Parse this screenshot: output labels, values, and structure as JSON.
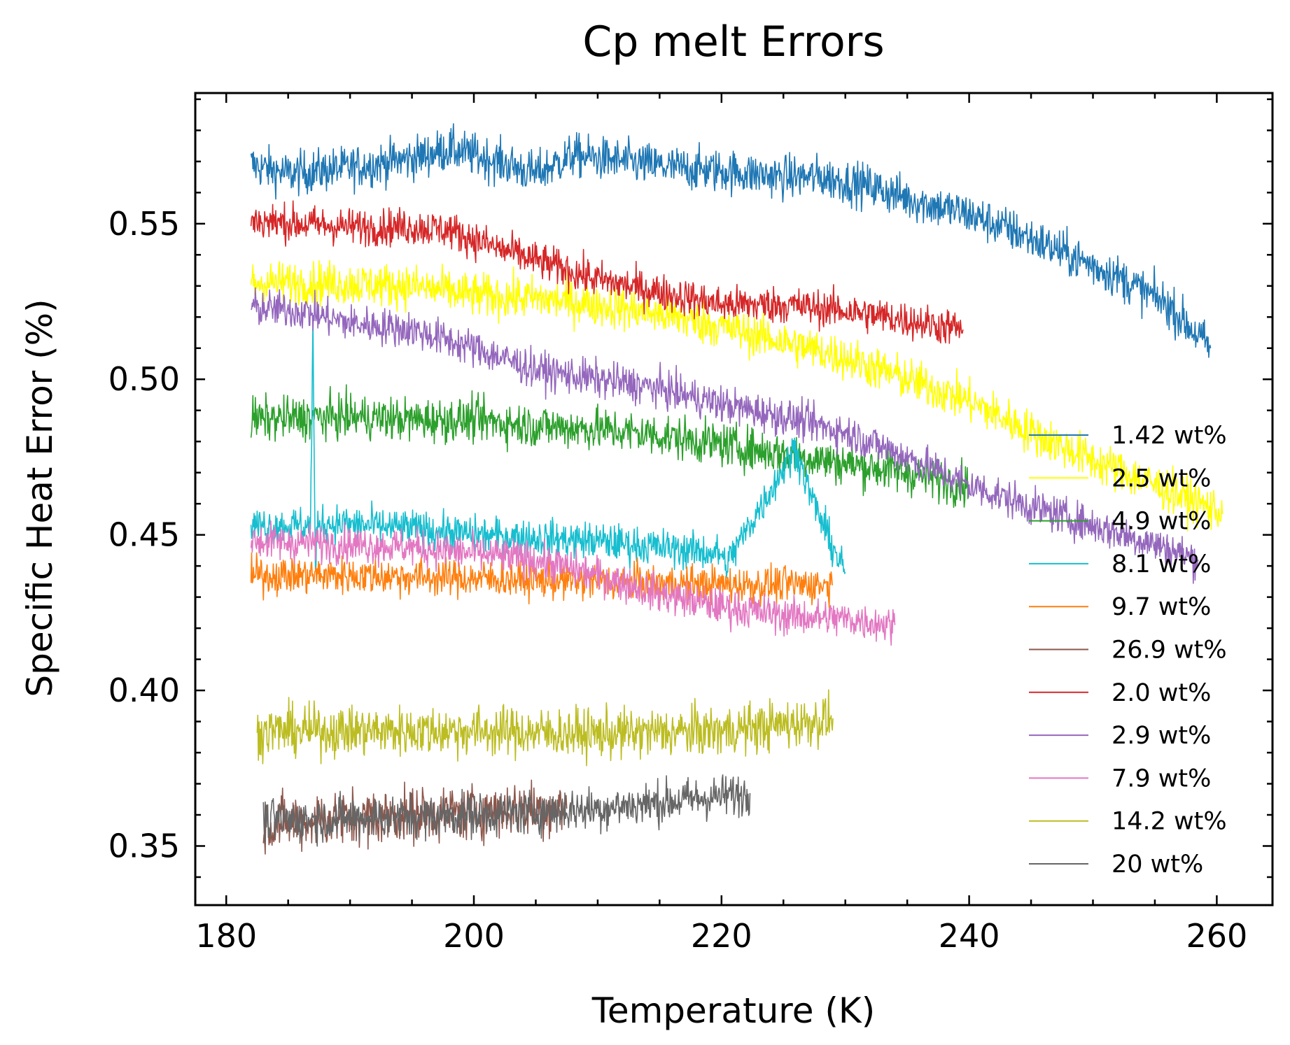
{
  "chart_data": {
    "type": "line",
    "title": "Cp melt Errors",
    "xlabel": "Temperature (K)",
    "ylabel": "Specific Heat Error (%)",
    "xlim": [
      177.5,
      264.5
    ],
    "ylim": [
      0.331,
      0.592
    ],
    "x_ticks": [
      180,
      200,
      220,
      240,
      260
    ],
    "x_tick_labels": [
      "180",
      "200",
      "220",
      "240",
      "260"
    ],
    "y_ticks": [
      0.35,
      0.4,
      0.45,
      0.5,
      0.55
    ],
    "y_tick_labels": [
      "0.35",
      "0.40",
      "0.45",
      "0.50",
      "0.55"
    ],
    "x_minor_step": 5,
    "y_minor_step": 0.01,
    "grid": false,
    "legend_position": "right",
    "series": [
      {
        "name": "1.42 wt%",
        "color": "#1f77b4",
        "noise": 0.0035,
        "points": [
          [
            182,
            0.569
          ],
          [
            185,
            0.566
          ],
          [
            190,
            0.568
          ],
          [
            195,
            0.571
          ],
          [
            198,
            0.574
          ],
          [
            202,
            0.57
          ],
          [
            205,
            0.566
          ],
          [
            208,
            0.572
          ],
          [
            212,
            0.57
          ],
          [
            216,
            0.568
          ],
          [
            220,
            0.567
          ],
          [
            225,
            0.565
          ],
          [
            228,
            0.565
          ],
          [
            232,
            0.562
          ],
          [
            236,
            0.557
          ],
          [
            240,
            0.553
          ],
          [
            244,
            0.547
          ],
          [
            248,
            0.54
          ],
          [
            252,
            0.533
          ],
          [
            256,
            0.524
          ],
          [
            259.5,
            0.51
          ]
        ]
      },
      {
        "name": "2.5 wt%",
        "color": "#ffff00",
        "noise": 0.0035,
        "points": [
          [
            182,
            0.531
          ],
          [
            188,
            0.531
          ],
          [
            195,
            0.53
          ],
          [
            200,
            0.527
          ],
          [
            205,
            0.526
          ],
          [
            210,
            0.524
          ],
          [
            215,
            0.521
          ],
          [
            220,
            0.517
          ],
          [
            225,
            0.512
          ],
          [
            230,
            0.507
          ],
          [
            235,
            0.5
          ],
          [
            240,
            0.493
          ],
          [
            245,
            0.483
          ],
          [
            250,
            0.474
          ],
          [
            255,
            0.466
          ],
          [
            260.5,
            0.457
          ]
        ]
      },
      {
        "name": "4.9 wt%",
        "color": "#2ca02c",
        "noise": 0.0035,
        "points": [
          [
            182,
            0.487
          ],
          [
            190,
            0.488
          ],
          [
            195,
            0.487
          ],
          [
            200,
            0.487
          ],
          [
            205,
            0.485
          ],
          [
            210,
            0.484
          ],
          [
            215,
            0.482
          ],
          [
            220,
            0.479
          ],
          [
            225,
            0.476
          ],
          [
            230,
            0.473
          ],
          [
            235,
            0.47
          ],
          [
            240,
            0.466
          ]
        ]
      },
      {
        "name": "8.1 wt%",
        "color": "#17becf",
        "noise": 0.003,
        "points": [
          [
            182,
            0.453
          ],
          [
            186.8,
            0.453
          ],
          [
            187,
            0.517
          ],
          [
            187.2,
            0.437
          ],
          [
            187.4,
            0.454
          ],
          [
            195,
            0.452
          ],
          [
            200,
            0.45
          ],
          [
            205,
            0.449
          ],
          [
            210,
            0.448
          ],
          [
            215,
            0.446
          ],
          [
            220,
            0.444
          ],
          [
            220.3,
            0.44
          ],
          [
            226,
            0.478
          ],
          [
            227,
            0.465
          ],
          [
            228,
            0.455
          ],
          [
            229,
            0.446
          ],
          [
            230,
            0.438
          ]
        ]
      },
      {
        "name": "9.7 wt%",
        "color": "#ff7f0e",
        "noise": 0.003,
        "points": [
          [
            182,
            0.437
          ],
          [
            190,
            0.437
          ],
          [
            200,
            0.436
          ],
          [
            210,
            0.435
          ],
          [
            220,
            0.434
          ],
          [
            229,
            0.434
          ]
        ]
      },
      {
        "name": "26.9 wt%",
        "color": "#8c564b",
        "noise": 0.0045,
        "points": [
          [
            183,
            0.357
          ],
          [
            190,
            0.359
          ],
          [
            195,
            0.36
          ],
          [
            200,
            0.361
          ],
          [
            205,
            0.362
          ],
          [
            207.5,
            0.362
          ]
        ]
      },
      {
        "name": "2.0 wt%",
        "color": "#d62728",
        "noise": 0.003,
        "points": [
          [
            182,
            0.551
          ],
          [
            190,
            0.549
          ],
          [
            195,
            0.549
          ],
          [
            198,
            0.548
          ],
          [
            202,
            0.542
          ],
          [
            206,
            0.537
          ],
          [
            210,
            0.532
          ],
          [
            215,
            0.528
          ],
          [
            220,
            0.524
          ],
          [
            225,
            0.524
          ],
          [
            230,
            0.522
          ],
          [
            235,
            0.519
          ],
          [
            239.5,
            0.516
          ]
        ]
      },
      {
        "name": "2.9 wt%",
        "color": "#9467bd",
        "noise": 0.003,
        "points": [
          [
            182,
            0.523
          ],
          [
            186,
            0.522
          ],
          [
            190,
            0.518
          ],
          [
            195,
            0.516
          ],
          [
            200,
            0.51
          ],
          [
            205,
            0.503
          ],
          [
            210,
            0.5
          ],
          [
            215,
            0.497
          ],
          [
            220,
            0.492
          ],
          [
            225,
            0.488
          ],
          [
            230,
            0.483
          ],
          [
            235,
            0.475
          ],
          [
            240,
            0.466
          ],
          [
            245,
            0.459
          ],
          [
            250,
            0.453
          ],
          [
            255,
            0.447
          ],
          [
            258.5,
            0.442
          ]
        ]
      },
      {
        "name": "7.9 wt%",
        "color": "#e377c2",
        "noise": 0.003,
        "points": [
          [
            182,
            0.448
          ],
          [
            190,
            0.447
          ],
          [
            195,
            0.446
          ],
          [
            200,
            0.444
          ],
          [
            205,
            0.442
          ],
          [
            210,
            0.437
          ],
          [
            215,
            0.431
          ],
          [
            220,
            0.427
          ],
          [
            225,
            0.424
          ],
          [
            230,
            0.423
          ],
          [
            234,
            0.421
          ]
        ]
      },
      {
        "name": "14.2 wt%",
        "color": "#bcbd22",
        "noise": 0.004,
        "points": [
          [
            182.5,
            0.387
          ],
          [
            190,
            0.387
          ],
          [
            200,
            0.387
          ],
          [
            210,
            0.386
          ],
          [
            220,
            0.387
          ],
          [
            225,
            0.389
          ],
          [
            229,
            0.391
          ]
        ]
      },
      {
        "name": "20 wt%",
        "color": "#666666",
        "noise": 0.0035,
        "points": [
          [
            183,
            0.358
          ],
          [
            190,
            0.359
          ],
          [
            200,
            0.36
          ],
          [
            210,
            0.362
          ],
          [
            215,
            0.364
          ],
          [
            220,
            0.366
          ],
          [
            222.3,
            0.367
          ]
        ]
      }
    ]
  }
}
